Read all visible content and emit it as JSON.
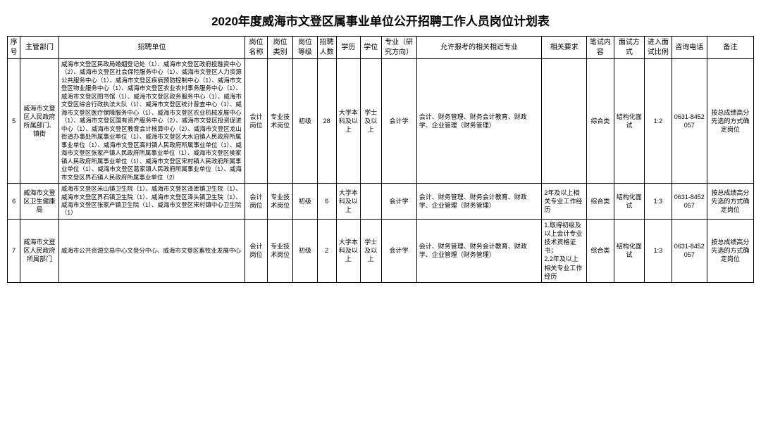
{
  "title": {
    "text": "2020年度威海市文登区属事业单位公开招聘工作人员岗位计划表",
    "fontsize": "17px"
  },
  "font": {
    "th_size": "10px",
    "td_size": "9px",
    "unit_size": "8.5px"
  },
  "headers": [
    "序号",
    "主管部门",
    "招聘单位",
    "岗位名称",
    "岗位类别",
    "岗位等级",
    "招聘人数",
    "学历",
    "学位",
    "专业（研究方向）",
    "允许报考的相关相近专业",
    "相关要求",
    "笔试内容",
    "面试方式",
    "进入面试比例",
    "咨询电话",
    "备注"
  ],
  "rows": [
    {
      "seq": "5",
      "dept": "威海市文登区人民政府所属部门、镇街",
      "unit": "威海市文登区民政局婚姻登记处（1）、威海市文登区政府投融资中心（2）、威海市文登区社会保险服务中心（1）、威海市文登区人力资源公共服务中心（1）、威海市文登区疾病预防控制中心（1）、威海市文登区物业服务中心（1）、威海市文登区农业农村事务服务中心（1）、威海市文登区图书馆（1）、威海市文登区政务服务中心（1）、威海市文登区综合行政执法大队（1）、威海市文登区统计普查中心（1）、威海市文登区医疗保障服务中心（1）、威海市文登区农业机械发展中心（1）、威海市文登区国有资产服务中心（2）、威海市文登区投资促进中心（1）、威海市文登区教育会计核算中心（2）、威海市文登区龙山街道办事处所属事业单位（1）、威海市文登区大水泊镇人民政府所属事业单位（1）、威海市文登区高村镇人民政府所属事业单位（1）、威海市文登区张家产镇人民政府所属事业单位（1）、威海市文登区侯家镇人民政府所属事业单位（1）、威海市文登区宋村镇人民政府所属事业单位（1）、威海市文登区葛家镇人民政府所属事业单位（1）、威海市文登区界石镇人民政府所属事业单位（2）",
      "pname": "会计岗位",
      "pcat": "专业技术岗位",
      "plvl": "初级",
      "num": "28",
      "edu": "大学本科及以上",
      "deg": "学士及以上",
      "maj": "会计学",
      "rel": "会计、财务管理、财务会计教育、财政学、企业管理（财务管理）",
      "req": "",
      "ex": "综合类",
      "iv": "结构化面试",
      "rt": "1:2",
      "tel": "0631-8452057",
      "note": "按总成绩高分先选的方式确定岗位"
    },
    {
      "seq": "6",
      "dept": "威海市文登区卫生健康局",
      "unit": "威海市文登区米山镇卫生院（1）、威海市文登区泽库镇卫生院（1）、威海市文登区界石镇卫生院（1）、威海市文登区泽头镇卫生院（1）、威海市文登区张家产镇卫生院（1）、威海市文登区宋村镇中心卫生院（1）",
      "pname": "会计岗位",
      "pcat": "专业技术岗位",
      "plvl": "初级",
      "num": "6",
      "edu": "大学本科及以上",
      "deg": "",
      "maj": "会计学",
      "rel": "会计、财务管理、财务会计教育、财政学、企业管理（财务管理）",
      "req": "2年及以上相关专业工作经历",
      "ex": "综合类",
      "iv": "结构化面试",
      "rt": "1:3",
      "tel": "0631-8452057",
      "note": "按总成绩高分先选的方式确定岗位"
    },
    {
      "seq": "7",
      "dept": "威海市文登区人民政府所属部门",
      "unit": "威海市公共资源交易中心文登分中心、威海市文登区畜牧业发展中心",
      "pname": "会计岗位",
      "pcat": "专业技术岗位",
      "plvl": "初级",
      "num": "2",
      "edu": "大学本科及以上",
      "deg": "学士及以上",
      "maj": "会计学",
      "rel": "会计、财务管理、财务会计教育、财政学、企业管理（财务管理）",
      "req": "1.取得初级及以上会计专业技术资格证书；\n2.2年及以上相关专业工作经历",
      "ex": "综合类",
      "iv": "结构化面试",
      "rt": "1:3",
      "tel": "0631-8452057",
      "note": "按总成绩高分先选的方式确定岗位"
    }
  ]
}
